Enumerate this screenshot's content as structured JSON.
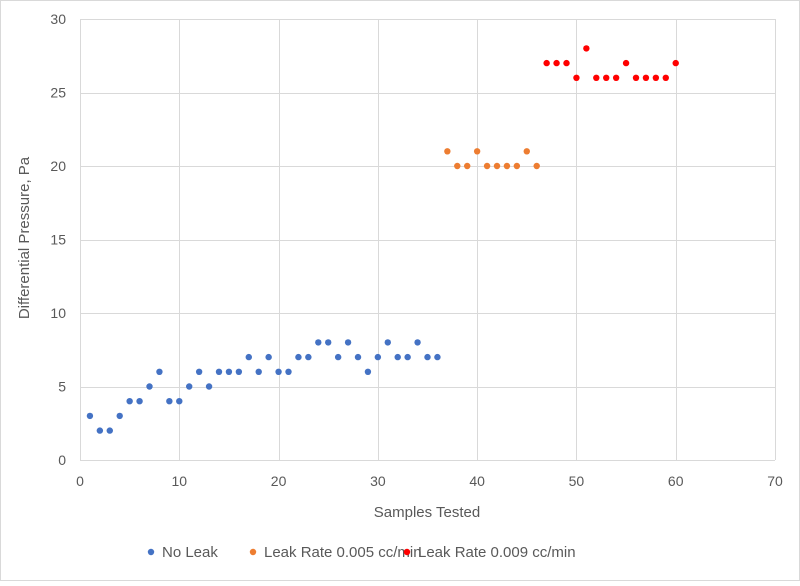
{
  "chart_data": {
    "type": "scatter",
    "title": "",
    "xlabel": "Samples Tested",
    "ylabel": "Differential Pressure, Pa",
    "xlim": [
      0,
      70
    ],
    "ylim": [
      0,
      30
    ],
    "xticks": [
      0,
      10,
      20,
      30,
      40,
      50,
      60,
      70
    ],
    "yticks": [
      0,
      5,
      10,
      15,
      20,
      25,
      30
    ],
    "grid": "vertical and horizontal major gridlines",
    "legend_position": "bottom",
    "series": [
      {
        "name": "No Leak",
        "color": "#4472C4",
        "x": [
          1,
          2,
          3,
          4,
          5,
          6,
          7,
          8,
          9,
          10,
          11,
          12,
          13,
          14,
          15,
          16,
          17,
          18,
          19,
          20,
          21,
          22,
          23,
          24,
          25,
          26,
          27,
          28,
          29,
          30,
          31,
          32,
          33,
          34,
          35,
          36
        ],
        "y": [
          3,
          2,
          2,
          3,
          4,
          4,
          5,
          6,
          4,
          4,
          5,
          6,
          5,
          6,
          6,
          6,
          7,
          6,
          7,
          6,
          6,
          7,
          7,
          8,
          8,
          7,
          8,
          7,
          6,
          7,
          8,
          7,
          7,
          8,
          7,
          7
        ]
      },
      {
        "name": "Leak Rate 0.005 cc/min",
        "color": "#ED7D31",
        "x": [
          37,
          38,
          39,
          40,
          41,
          42,
          43,
          44,
          45,
          46
        ],
        "y": [
          21,
          20,
          20,
          21,
          20,
          20,
          20,
          20,
          21,
          20
        ]
      },
      {
        "name": "Leak Rate 0.009 cc/min",
        "color": "#FF0000",
        "x": [
          47,
          48,
          49,
          50,
          51,
          52,
          53,
          54,
          55,
          56,
          57,
          58,
          59,
          60
        ],
        "y": [
          27,
          27,
          27,
          26,
          28,
          26,
          26,
          26,
          27,
          26,
          26,
          26,
          26,
          27
        ]
      }
    ]
  },
  "colors": {
    "grid": "#D9D9D9",
    "text": "#595959",
    "border": "#D9D9D9"
  }
}
